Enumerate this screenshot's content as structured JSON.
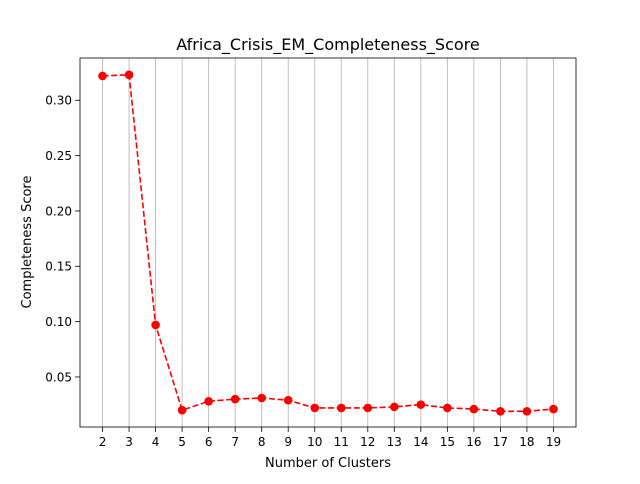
{
  "chart_data": {
    "type": "line",
    "title": "Africa_Crisis_EM_Completeness_Score",
    "xlabel": "Number of Clusters",
    "ylabel": "Completeness Score",
    "x": [
      2,
      3,
      4,
      5,
      6,
      7,
      8,
      9,
      10,
      11,
      12,
      13,
      14,
      15,
      16,
      17,
      18,
      19
    ],
    "series": [
      {
        "values": [
          0.322,
          0.323,
          0.097,
          0.02,
          0.028,
          0.03,
          0.031,
          0.029,
          0.022,
          0.022,
          0.022,
          0.023,
          0.025,
          0.022,
          0.021,
          0.019,
          0.019,
          0.021
        ],
        "color": "#ff0000",
        "line_style": "dashed",
        "marker": "circle"
      }
    ],
    "xlim": [
      1.15,
      19.85
    ],
    "ylim": [
      0.0048,
      0.3382
    ],
    "x_ticks": [
      2,
      3,
      4,
      5,
      6,
      7,
      8,
      9,
      10,
      11,
      12,
      13,
      14,
      15,
      16,
      17,
      18,
      19
    ],
    "x_tick_labels": [
      "2",
      "3",
      "4",
      "5",
      "6",
      "7",
      "8",
      "9",
      "10",
      "11",
      "12",
      "13",
      "14",
      "15",
      "16",
      "17",
      "18",
      "19"
    ],
    "y_ticks": [
      0.05,
      0.1,
      0.15,
      0.2,
      0.25,
      0.3
    ],
    "y_tick_labels": [
      "0.05",
      "0.10",
      "0.15",
      "0.20",
      "0.25",
      "0.30"
    ],
    "grid": "vertical",
    "legend": "none"
  }
}
